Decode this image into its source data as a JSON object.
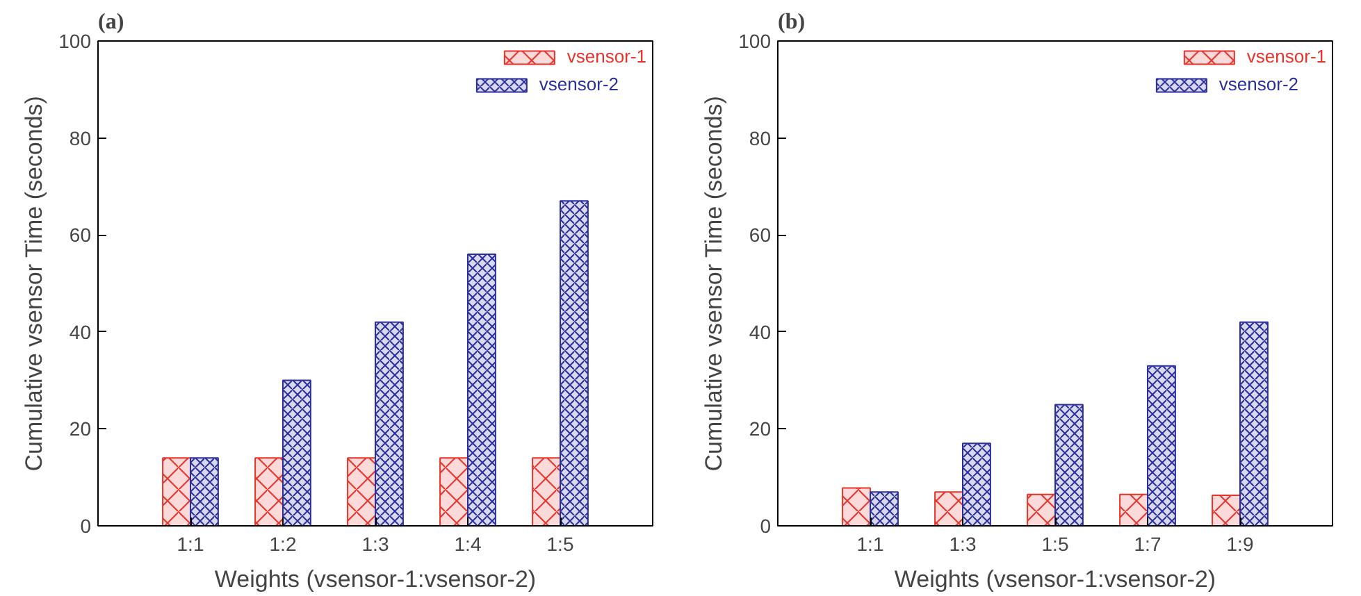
{
  "chart_data": [
    {
      "type": "bar",
      "title": "(a)",
      "xlabel": "Weights (vsensor-1:vsensor-2)",
      "ylabel": "Cumulative vsensor Time (seconds)",
      "categories": [
        "1:1",
        "1:2",
        "1:3",
        "1:4",
        "1:5"
      ],
      "series": [
        {
          "name": "vsensor-1",
          "color": "#e8332b",
          "values": [
            14,
            14,
            14,
            14,
            14
          ]
        },
        {
          "name": "vsensor-2",
          "color": "#2b2f9c",
          "values": [
            14,
            30,
            42,
            56,
            67
          ]
        }
      ],
      "ylim": [
        0,
        100
      ],
      "yticks": [
        0,
        20,
        40,
        60,
        80,
        100
      ],
      "grid": false,
      "legend": "top right"
    },
    {
      "type": "bar",
      "title": "(b)",
      "xlabel": "Weights (vsensor-1:vsensor-2)",
      "ylabel": "Cumulative vsensor Time (seconds)",
      "categories": [
        "1:1",
        "1:3",
        "1:5",
        "1:7",
        "1:9"
      ],
      "series": [
        {
          "name": "vsensor-1",
          "color": "#e8332b",
          "values": [
            7.8,
            7,
            6.5,
            6.5,
            6.3
          ]
        },
        {
          "name": "vsensor-2",
          "color": "#2b2f9c",
          "values": [
            7,
            17,
            25,
            33,
            42
          ]
        }
      ],
      "ylim": [
        0,
        100
      ],
      "yticks": [
        0,
        20,
        40,
        60,
        80,
        100
      ],
      "grid": false,
      "legend": "top right"
    }
  ]
}
